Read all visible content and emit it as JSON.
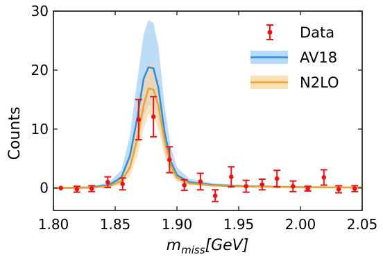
{
  "chart_data": {
    "type": "line",
    "xlabel": "m",
    "xlabel_sub": "miss",
    "xlabel_unit": "[GeV]",
    "ylabel": "Counts",
    "xlim": [
      1.8,
      2.05
    ],
    "ylim": [
      -3.8,
      30
    ],
    "xticks": [
      "1.80",
      "1.85",
      "1.90",
      "1.95",
      "2.00",
      "2.05"
    ],
    "yticks": [
      "0",
      "10",
      "20",
      "30"
    ],
    "legend_position": "top-right",
    "colors": {
      "data": "#ee1111",
      "av18": "#2a8de0",
      "av18_band": "#9fcdf5",
      "n2lo": "#f2a22a",
      "n2lo_band": "#fbd59c"
    },
    "series": [
      {
        "name": "Data",
        "kind": "errorbar",
        "points": [
          {
            "x": 1.806,
            "y": 0.0,
            "err": 0.0
          },
          {
            "x": 1.819,
            "y": -0.2,
            "err": 0.5
          },
          {
            "x": 1.831,
            "y": -0.1,
            "err": 0.5
          },
          {
            "x": 1.844,
            "y": 1.0,
            "err": 0.9
          },
          {
            "x": 1.856,
            "y": 0.7,
            "err": 1.0
          },
          {
            "x": 1.869,
            "y": 11.6,
            "err": 3.4
          },
          {
            "x": 1.881,
            "y": 12.1,
            "err": 3.4
          },
          {
            "x": 1.894,
            "y": 4.8,
            "err": 2.2
          },
          {
            "x": 1.906,
            "y": 0.5,
            "err": 0.9
          },
          {
            "x": 1.919,
            "y": 1.1,
            "err": 1.4
          },
          {
            "x": 1.931,
            "y": -1.3,
            "err": 1.0
          },
          {
            "x": 1.944,
            "y": 1.9,
            "err": 1.7
          },
          {
            "x": 1.956,
            "y": 0.3,
            "err": 1.0
          },
          {
            "x": 1.969,
            "y": 0.6,
            "err": 0.9
          },
          {
            "x": 1.981,
            "y": 1.6,
            "err": 1.4
          },
          {
            "x": 1.994,
            "y": 0.3,
            "err": 0.9
          },
          {
            "x": 2.006,
            "y": -0.1,
            "err": 0.4
          },
          {
            "x": 2.019,
            "y": 1.8,
            "err": 1.3
          },
          {
            "x": 2.031,
            "y": -0.2,
            "err": 0.6
          },
          {
            "x": 2.044,
            "y": -0.1,
            "err": 0.5
          }
        ]
      },
      {
        "name": "AV18",
        "kind": "band",
        "points": [
          {
            "x": 1.8,
            "y": 0.0,
            "lo": 0.0,
            "hi": 0.1
          },
          {
            "x": 1.83,
            "y": 0.1,
            "lo": 0.0,
            "hi": 0.2
          },
          {
            "x": 1.845,
            "y": 0.5,
            "lo": 0.2,
            "hi": 1.0
          },
          {
            "x": 1.855,
            "y": 1.8,
            "lo": 0.9,
            "hi": 3.0
          },
          {
            "x": 1.862,
            "y": 5.5,
            "lo": 3.0,
            "hi": 9.0
          },
          {
            "x": 1.868,
            "y": 12.0,
            "lo": 7.0,
            "hi": 18.5
          },
          {
            "x": 1.873,
            "y": 18.5,
            "lo": 12.0,
            "hi": 26.0
          },
          {
            "x": 1.877,
            "y": 20.5,
            "lo": 14.0,
            "hi": 28.5
          },
          {
            "x": 1.881,
            "y": 20.3,
            "lo": 14.0,
            "hi": 28.0
          },
          {
            "x": 1.885,
            "y": 17.0,
            "lo": 11.5,
            "hi": 24.0
          },
          {
            "x": 1.89,
            "y": 9.5,
            "lo": 6.0,
            "hi": 14.0
          },
          {
            "x": 1.895,
            "y": 4.5,
            "lo": 2.8,
            "hi": 7.0
          },
          {
            "x": 1.9,
            "y": 2.2,
            "lo": 1.3,
            "hi": 3.5
          },
          {
            "x": 1.91,
            "y": 1.0,
            "lo": 0.6,
            "hi": 1.6
          },
          {
            "x": 1.93,
            "y": 0.5,
            "lo": 0.3,
            "hi": 0.8
          },
          {
            "x": 1.96,
            "y": 0.3,
            "lo": 0.15,
            "hi": 0.45
          },
          {
            "x": 2.0,
            "y": 0.15,
            "lo": 0.05,
            "hi": 0.25
          },
          {
            "x": 2.05,
            "y": 0.1,
            "lo": 0.0,
            "hi": 0.15
          }
        ]
      },
      {
        "name": "N2LO",
        "kind": "band",
        "points": [
          {
            "x": 1.8,
            "y": 0.0,
            "lo": 0.0,
            "hi": 0.1
          },
          {
            "x": 1.83,
            "y": 0.05,
            "lo": 0.0,
            "hi": 0.15
          },
          {
            "x": 1.845,
            "y": 0.3,
            "lo": 0.1,
            "hi": 0.6
          },
          {
            "x": 1.855,
            "y": 1.2,
            "lo": 0.6,
            "hi": 2.0
          },
          {
            "x": 1.862,
            "y": 3.5,
            "lo": 2.0,
            "hi": 5.5
          },
          {
            "x": 1.868,
            "y": 8.5,
            "lo": 5.5,
            "hi": 12.0
          },
          {
            "x": 1.873,
            "y": 14.0,
            "lo": 10.0,
            "hi": 18.0
          },
          {
            "x": 1.877,
            "y": 16.9,
            "lo": 12.5,
            "hi": 21.0
          },
          {
            "x": 1.881,
            "y": 16.7,
            "lo": 12.3,
            "hi": 21.0
          },
          {
            "x": 1.885,
            "y": 14.0,
            "lo": 10.0,
            "hi": 18.0
          },
          {
            "x": 1.89,
            "y": 8.0,
            "lo": 5.5,
            "hi": 11.0
          },
          {
            "x": 1.895,
            "y": 3.8,
            "lo": 2.5,
            "hi": 5.5
          },
          {
            "x": 1.9,
            "y": 1.8,
            "lo": 1.1,
            "hi": 2.7
          },
          {
            "x": 1.91,
            "y": 0.8,
            "lo": 0.5,
            "hi": 1.2
          },
          {
            "x": 1.93,
            "y": 0.4,
            "lo": 0.25,
            "hi": 0.6
          },
          {
            "x": 1.96,
            "y": 0.25,
            "lo": 0.1,
            "hi": 0.35
          },
          {
            "x": 2.0,
            "y": 0.12,
            "lo": 0.05,
            "hi": 0.2
          },
          {
            "x": 2.05,
            "y": 0.1,
            "lo": 0.0,
            "hi": 0.15
          }
        ]
      }
    ]
  }
}
